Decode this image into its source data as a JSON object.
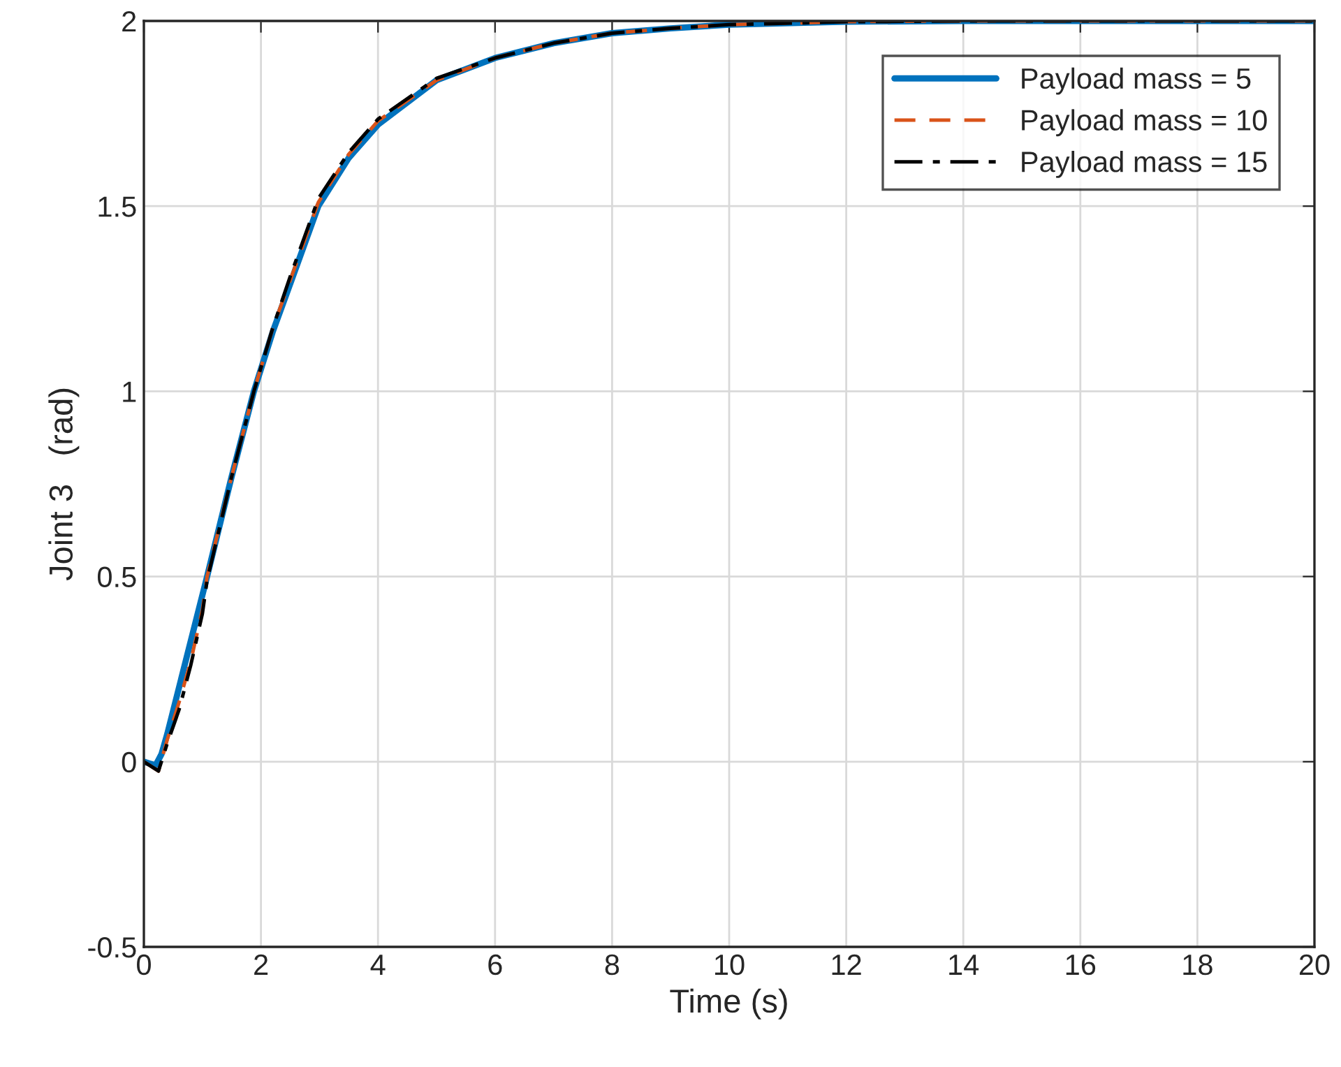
{
  "chart_data": {
    "type": "line",
    "xlabel": "Time (s)",
    "ylabel": "Joint 3   (rad)",
    "xlim": [
      0,
      20
    ],
    "xticks": [
      0,
      2,
      4,
      6,
      8,
      10,
      12,
      14,
      16,
      18,
      20
    ],
    "ylim": [
      -0.5,
      2
    ],
    "yticks": [
      -0.5,
      0,
      0.5,
      1,
      1.5,
      2
    ],
    "grid": true,
    "legend": "top right",
    "series": [
      {
        "name": "Payload mass = 5",
        "color": "#0072bd",
        "line_style": "solid",
        "x": [
          0,
          0.1,
          0.2,
          0.3,
          0.4,
          1.08,
          1.5,
          1.88,
          2.2,
          2.5,
          2.98,
          3.5,
          4,
          5,
          6,
          7,
          8,
          9,
          10,
          12,
          14,
          20
        ],
        "values": [
          0,
          -0.005,
          -0.01,
          0.02,
          0.075,
          0.5,
          0.77,
          1.0,
          1.16,
          1.29,
          1.5,
          1.63,
          1.72,
          1.84,
          1.9,
          1.94,
          1.967,
          1.98,
          1.99,
          1.998,
          2.0,
          2.0
        ]
      },
      {
        "name": "Payload mass = 10",
        "color": "#d95319",
        "line_style": "dashed",
        "x": [
          0,
          0.1,
          0.25,
          0.4,
          0.6,
          0.8,
          1.0,
          1.08,
          1.5,
          1.88,
          2.2,
          2.5,
          2.98,
          3.5,
          4,
          5,
          6,
          7,
          8,
          9,
          10,
          12,
          14,
          20
        ],
        "values": [
          0,
          -0.01,
          -0.025,
          0.06,
          0.16,
          0.27,
          0.41,
          0.5,
          0.77,
          1.0,
          1.17,
          1.3,
          1.51,
          1.64,
          1.73,
          1.84,
          1.9,
          1.94,
          1.967,
          1.98,
          1.99,
          1.998,
          2.0,
          2.0
        ]
      },
      {
        "name": "Payload mass = 15",
        "color": "#000000",
        "line_style": "dashdot",
        "x": [
          0,
          0.1,
          0.25,
          0.4,
          0.6,
          0.8,
          1.0,
          1.08,
          1.5,
          1.88,
          2.2,
          2.5,
          2.98,
          3.5,
          4,
          5,
          6,
          7,
          8,
          9,
          10,
          12,
          14,
          20
        ],
        "values": [
          0,
          -0.01,
          -0.025,
          0.05,
          0.14,
          0.26,
          0.4,
          0.49,
          0.77,
          1.0,
          1.17,
          1.31,
          1.52,
          1.645,
          1.735,
          1.845,
          1.9,
          1.94,
          1.967,
          1.98,
          1.99,
          1.998,
          2.0,
          2.0
        ]
      }
    ]
  }
}
